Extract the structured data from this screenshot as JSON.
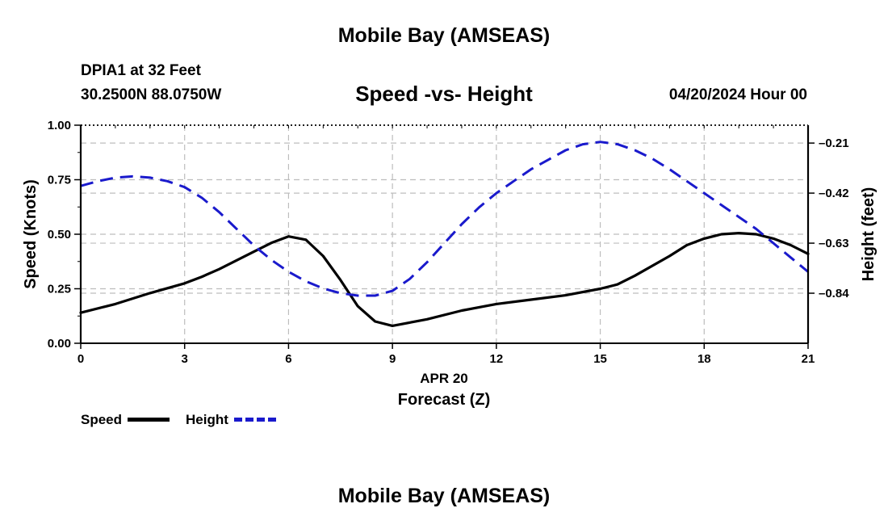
{
  "header": {
    "title": "Mobile Bay (AMSEAS)",
    "station": "DPIA1 at 32 Feet",
    "coords": "30.2500N  88.0750W",
    "subtitle": "Speed -vs- Height",
    "datetime": "04/20/2024 Hour 00"
  },
  "footer": {
    "title": "Mobile Bay (AMSEAS)"
  },
  "legend": [
    {
      "label": "Speed",
      "color": "#000000",
      "style": "solid"
    },
    {
      "label": "Height",
      "color": "#1a1acc",
      "style": "dashed"
    }
  ],
  "chart_data": {
    "type": "line",
    "xlabel": "Forecast (Z)",
    "xlabel_date": "APR 20",
    "xlim": [
      0,
      21
    ],
    "xticks": [
      "0",
      "3",
      "6",
      "9",
      "12",
      "15",
      "18",
      "21"
    ],
    "y_left": {
      "label": "Speed (Knots)",
      "lim": [
        0,
        1
      ],
      "ticks": [
        "0.00",
        "0.25",
        "0.50",
        "0.75",
        "1.00"
      ]
    },
    "y_right": {
      "label": "Height (feet)",
      "lim": [
        -1.05,
        -0.135
      ],
      "ticks": [
        "-0.21",
        "-0.42",
        "-0.63",
        "-0.84"
      ]
    },
    "grid": true,
    "legend_position": "bottom-left",
    "series": [
      {
        "name": "Speed",
        "axis": "left",
        "color": "#000000",
        "style": "solid",
        "x": [
          0,
          1,
          2,
          3,
          3.5,
          4,
          5,
          5.5,
          6,
          6.5,
          7,
          7.5,
          8,
          8.5,
          9,
          10,
          11,
          12,
          13,
          14,
          15,
          15.5,
          16,
          17,
          17.5,
          18,
          18.5,
          19,
          19.5,
          20,
          20.5,
          21
        ],
        "values": [
          0.14,
          0.18,
          0.23,
          0.275,
          0.305,
          0.34,
          0.42,
          0.46,
          0.49,
          0.475,
          0.4,
          0.29,
          0.17,
          0.1,
          0.08,
          0.11,
          0.15,
          0.18,
          0.2,
          0.22,
          0.25,
          0.27,
          0.31,
          0.4,
          0.45,
          0.48,
          0.5,
          0.505,
          0.5,
          0.48,
          0.45,
          0.41
        ]
      },
      {
        "name": "Height",
        "axis": "right",
        "color": "#1a1acc",
        "style": "dashed",
        "x": [
          0,
          0.5,
          1,
          1.5,
          2,
          2.5,
          3,
          3.5,
          4,
          4.5,
          5,
          5.5,
          6,
          6.5,
          7,
          7.5,
          8,
          8.5,
          9,
          9.5,
          10,
          10.5,
          11,
          11.5,
          12,
          12.5,
          13,
          13.5,
          14,
          14.5,
          15,
          15.5,
          16,
          16.5,
          17,
          17.5,
          18,
          18.5,
          19,
          19.5,
          20,
          20.5,
          21
        ],
        "values": [
          -0.39,
          -0.37,
          -0.355,
          -0.35,
          -0.355,
          -0.37,
          -0.395,
          -0.44,
          -0.5,
          -0.57,
          -0.64,
          -0.7,
          -0.75,
          -0.79,
          -0.82,
          -0.84,
          -0.85,
          -0.85,
          -0.83,
          -0.78,
          -0.71,
          -0.63,
          -0.55,
          -0.48,
          -0.42,
          -0.37,
          -0.32,
          -0.28,
          -0.24,
          -0.215,
          -0.205,
          -0.215,
          -0.24,
          -0.275,
          -0.32,
          -0.37,
          -0.42,
          -0.47,
          -0.52,
          -0.57,
          -0.63,
          -0.69,
          -0.75
        ]
      }
    ]
  }
}
